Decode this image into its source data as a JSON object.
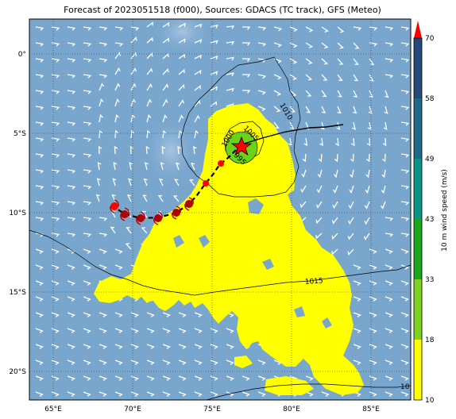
{
  "title": "Forecast of 2023051518 (f000), Sources: GDACS (TC track), GFS (Meteo)",
  "lat_labels": [
    "0°",
    "5°S",
    "10°S",
    "15°S",
    "20°S"
  ],
  "lon_labels": [
    "65°E",
    "70°E",
    "75°E",
    "80°E",
    "85°E"
  ],
  "contour_labels": [
    "1010",
    "1005",
    "1000",
    "995",
    "1015",
    "10"
  ],
  "colorbar": {
    "label": "10 m wind speed (m/s)",
    "ticks": [
      "10",
      "18",
      "33",
      "43",
      "49",
      "58",
      "70"
    ],
    "colors": [
      "#ffff00",
      "#7ed321",
      "#1aa81a",
      "#0a9488",
      "#1f6a8a",
      "#24497a",
      "#1e2a5a"
    ],
    "arrow_color": "#ff0000"
  },
  "colors": {
    "ocean": "#78a6cd",
    "land_high_wind": "#ffff00",
    "storm_center": "#6bd21a",
    "track_point": "#b30000",
    "star": "#ff0000"
  }
}
